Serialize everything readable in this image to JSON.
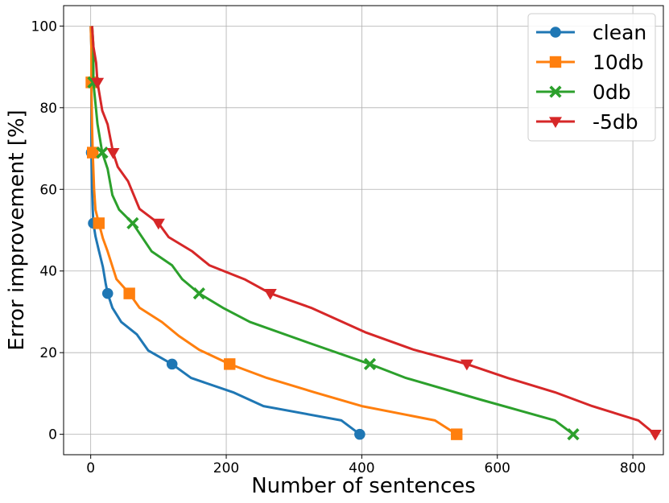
{
  "chart_data": {
    "type": "line",
    "title": "",
    "xlabel": "Number of sentences",
    "ylabel": "Error improvement [%]",
    "xlim": [
      -40,
      845
    ],
    "ylim": [
      -5,
      105
    ],
    "xticks": [
      0,
      200,
      400,
      600,
      800
    ],
    "yticks": [
      0,
      20,
      40,
      60,
      80,
      100
    ],
    "grid": true,
    "legend_position": "top-right",
    "series": [
      {
        "name": "clean",
        "color": "#1f77b4",
        "marker": "circle",
        "points": [
          [
            0,
            100
          ],
          [
            1,
            95
          ],
          [
            1,
            86.2
          ],
          [
            1,
            75
          ],
          [
            1,
            69
          ],
          [
            2,
            60
          ],
          [
            3,
            55
          ],
          [
            4,
            51.7
          ],
          [
            7,
            48.5
          ],
          [
            12,
            45
          ],
          [
            18,
            41
          ],
          [
            22,
            37
          ],
          [
            25,
            34.5
          ],
          [
            32,
            31
          ],
          [
            45,
            27.5
          ],
          [
            68,
            24.5
          ],
          [
            85,
            20.5
          ],
          [
            120,
            17.2
          ],
          [
            148,
            13.8
          ],
          [
            210,
            10.3
          ],
          [
            255,
            6.9
          ],
          [
            370,
            3.4
          ],
          [
            397,
            0
          ]
        ],
        "marker_points": [
          [
            1,
            86.2
          ],
          [
            1,
            69
          ],
          [
            4,
            51.7
          ],
          [
            25,
            34.5
          ],
          [
            120,
            17.2
          ],
          [
            397,
            0
          ]
        ]
      },
      {
        "name": "10db",
        "color": "#ff7f0e",
        "marker": "square",
        "points": [
          [
            0,
            100
          ],
          [
            1,
            95
          ],
          [
            1,
            86.2
          ],
          [
            2,
            75
          ],
          [
            3,
            69
          ],
          [
            5,
            60
          ],
          [
            7,
            55
          ],
          [
            12,
            51.7
          ],
          [
            18,
            48
          ],
          [
            25,
            44.8
          ],
          [
            38,
            38
          ],
          [
            57,
            34.5
          ],
          [
            72,
            31
          ],
          [
            105,
            27.5
          ],
          [
            130,
            24.1
          ],
          [
            160,
            20.7
          ],
          [
            205,
            17.2
          ],
          [
            260,
            13.8
          ],
          [
            330,
            10.3
          ],
          [
            400,
            6.9
          ],
          [
            508,
            3.4
          ],
          [
            540,
            0
          ]
        ],
        "marker_points": [
          [
            1,
            86.2
          ],
          [
            3,
            69
          ],
          [
            12,
            51.7
          ],
          [
            57,
            34.5
          ],
          [
            205,
            17.2
          ],
          [
            540,
            0
          ]
        ]
      },
      {
        "name": "0db",
        "color": "#2ca02c",
        "marker": "x",
        "points": [
          [
            2,
            100
          ],
          [
            4,
            95
          ],
          [
            4,
            86.2
          ],
          [
            10,
            76
          ],
          [
            17,
            69
          ],
          [
            25,
            65
          ],
          [
            32,
            58.6
          ],
          [
            42,
            55
          ],
          [
            62,
            51.7
          ],
          [
            90,
            44.8
          ],
          [
            120,
            41.4
          ],
          [
            135,
            38
          ],
          [
            160,
            34.5
          ],
          [
            195,
            31
          ],
          [
            235,
            27.5
          ],
          [
            320,
            22.5
          ],
          [
            412,
            17.2
          ],
          [
            465,
            13.8
          ],
          [
            575,
            8.5
          ],
          [
            685,
            3.4
          ],
          [
            712,
            0
          ]
        ],
        "marker_points": [
          [
            4,
            86.2
          ],
          [
            17,
            69
          ],
          [
            62,
            51.7
          ],
          [
            160,
            34.5
          ],
          [
            412,
            17.2
          ],
          [
            712,
            0
          ]
        ]
      },
      {
        "name": "-5db",
        "color": "#d62728",
        "marker": "triangle-down",
        "points": [
          [
            2,
            100
          ],
          [
            4,
            95
          ],
          [
            8,
            91
          ],
          [
            10,
            86.2
          ],
          [
            17,
            79.3
          ],
          [
            25,
            75.9
          ],
          [
            33,
            69
          ],
          [
            40,
            65.5
          ],
          [
            55,
            62
          ],
          [
            72,
            55.2
          ],
          [
            100,
            51.7
          ],
          [
            115,
            48.3
          ],
          [
            150,
            44.8
          ],
          [
            175,
            41.4
          ],
          [
            228,
            37.9
          ],
          [
            265,
            34.5
          ],
          [
            325,
            31
          ],
          [
            405,
            25
          ],
          [
            477,
            20.7
          ],
          [
            555,
            17.2
          ],
          [
            615,
            13.8
          ],
          [
            685,
            10.3
          ],
          [
            740,
            6.9
          ],
          [
            808,
            3.4
          ],
          [
            833,
            0
          ]
        ],
        "marker_points": [
          [
            10,
            86.2
          ],
          [
            33,
            69
          ],
          [
            100,
            51.7
          ],
          [
            265,
            34.5
          ],
          [
            555,
            17.2
          ],
          [
            833,
            0
          ]
        ]
      }
    ]
  }
}
